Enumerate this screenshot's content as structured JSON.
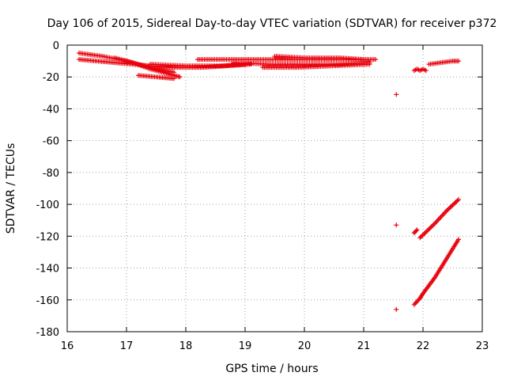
{
  "chart_data": {
    "type": "scatter",
    "title": "Day 106 of 2015, Sidereal Day-to-day VTEC variation (SDTVAR) for receiver p372",
    "xlabel": "GPS time / hours",
    "ylabel": "SDTVAR / TECUs",
    "xlim": [
      16,
      23
    ],
    "ylim": [
      -180,
      0
    ],
    "x_ticks": [
      16,
      17,
      18,
      19,
      20,
      21,
      22,
      23
    ],
    "y_ticks": [
      0,
      -20,
      -40,
      -60,
      -80,
      -100,
      -120,
      -140,
      -160,
      -180
    ],
    "x_tick_labels": [
      "16",
      "17",
      "18",
      "19",
      "20",
      "21",
      "22",
      "23"
    ],
    "y_tick_labels": [
      "0",
      "-20",
      "-40",
      "-60",
      "-80",
      "-100",
      "-120",
      "-140",
      "-160",
      "-180"
    ],
    "grid": true,
    "marker": "+",
    "color": "#e8000b",
    "series": [
      {
        "segments": [
          {
            "x": [
              16.2,
              16.6,
              17.0,
              17.3,
              17.5,
              17.8
            ],
            "y": [
              -5,
              -7,
              -10,
              -13,
              -15,
              -17
            ]
          },
          {
            "x": [
              16.2,
              16.5,
              16.8,
              17.1,
              17.4,
              17.7,
              18.0,
              18.3,
              18.7,
              19.1
            ],
            "y": [
              -9,
              -10,
              -11,
              -12,
              -13,
              -14,
              -14,
              -14,
              -13,
              -12
            ]
          },
          {
            "x": [
              16.8,
              17.1,
              17.4,
              17.7,
              17.9
            ],
            "y": [
              -8,
              -11,
              -15,
              -18,
              -20
            ]
          },
          {
            "x": [
              17.2,
              17.5,
              17.8
            ],
            "y": [
              -19,
              -20,
              -21
            ]
          },
          {
            "x": [
              17.4,
              18.0,
              18.6,
              19.0
            ],
            "y": [
              -12,
              -13,
              -13,
              -12
            ]
          },
          {
            "x": [
              18.2,
              18.8,
              19.4,
              20.0,
              20.6,
              21.2
            ],
            "y": [
              -9,
              -9,
              -9,
              -9,
              -9,
              -9
            ]
          },
          {
            "x": [
              18.8,
              19.4,
              20.0,
              20.6,
              21.1
            ],
            "y": [
              -11,
              -12,
              -12,
              -12,
              -11
            ]
          },
          {
            "x": [
              19.5,
              20.0,
              20.6,
              21.0
            ],
            "y": [
              -7,
              -8,
              -8,
              -9
            ]
          },
          {
            "x": [
              19.3,
              19.9,
              20.5,
              21.1
            ],
            "y": [
              -14,
              -14,
              -13,
              -12
            ]
          },
          {
            "x": [
              21.55
            ],
            "y": [
              -31
            ]
          },
          {
            "x": [
              21.85,
              21.9,
              21.95,
              22.0,
              22.05
            ],
            "y": [
              -16,
              -15,
              -16,
              -15,
              -16
            ]
          },
          {
            "x": [
              22.1,
              22.3,
              22.5,
              22.6
            ],
            "y": [
              -12,
              -11,
              -10,
              -10
            ]
          },
          {
            "x": [
              21.55
            ],
            "y": [
              -113
            ]
          },
          {
            "x": [
              21.85,
              21.9
            ],
            "y": [
              -118,
              -116
            ]
          },
          {
            "x": [
              21.95,
              22.2,
              22.4,
              22.6
            ],
            "y": [
              -121,
              -112,
              -104,
              -97
            ]
          },
          {
            "x": [
              21.55
            ],
            "y": [
              -166
            ]
          },
          {
            "x": [
              21.85,
              21.95,
              22.0,
              22.2,
              22.4,
              22.6
            ],
            "y": [
              -163,
              -159,
              -156,
              -146,
              -134,
              -122
            ]
          }
        ]
      }
    ]
  }
}
